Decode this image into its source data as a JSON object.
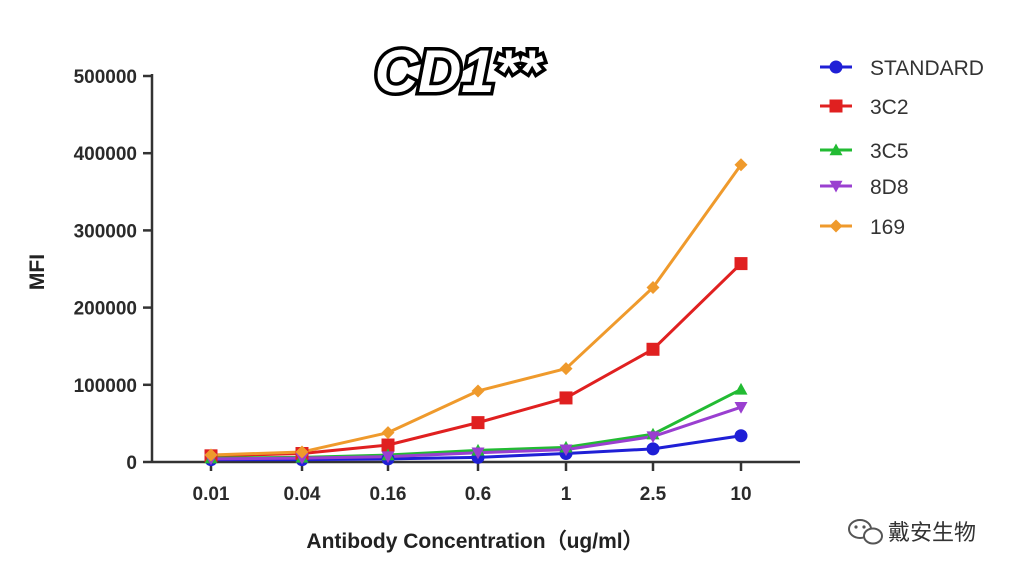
{
  "chart_data": {
    "type": "line",
    "title": "CD1**",
    "xlabel": "Antibody Concentration（ug/ml）",
    "ylabel": "MFI",
    "categories": [
      "0.01",
      "0.04",
      "0.16",
      "0.6",
      "1",
      "2.5",
      "10"
    ],
    "yticks": [
      "0",
      "100000",
      "200000",
      "300000",
      "400000",
      "500000"
    ],
    "ylim": [
      0,
      500000
    ],
    "grid": false,
    "legend_position": "top-right",
    "series": [
      {
        "name": "STANDARD",
        "color": "#1f1fd6",
        "marker": "circle",
        "values": [
          3000,
          3000,
          4000,
          6000,
          11000,
          17000,
          34000
        ]
      },
      {
        "name": "3C2",
        "color": "#e02020",
        "marker": "square",
        "values": [
          8000,
          11000,
          22000,
          51000,
          83000,
          146000,
          257000
        ]
      },
      {
        "name": "3C5",
        "color": "#22bb33",
        "marker": "triangle-up",
        "values": [
          5000,
          6000,
          9000,
          15000,
          19000,
          36000,
          94000
        ]
      },
      {
        "name": "8D8",
        "color": "#9a3fd0",
        "marker": "triangle-down",
        "values": [
          4000,
          5000,
          7000,
          12000,
          16000,
          33000,
          71000
        ]
      },
      {
        "name": "169",
        "color": "#ef9a2c",
        "marker": "diamond",
        "values": [
          9000,
          13000,
          38000,
          92000,
          121000,
          226000,
          385000
        ]
      }
    ]
  },
  "watermark": {
    "text": "戴安生物",
    "icon": "wechat-icon"
  }
}
